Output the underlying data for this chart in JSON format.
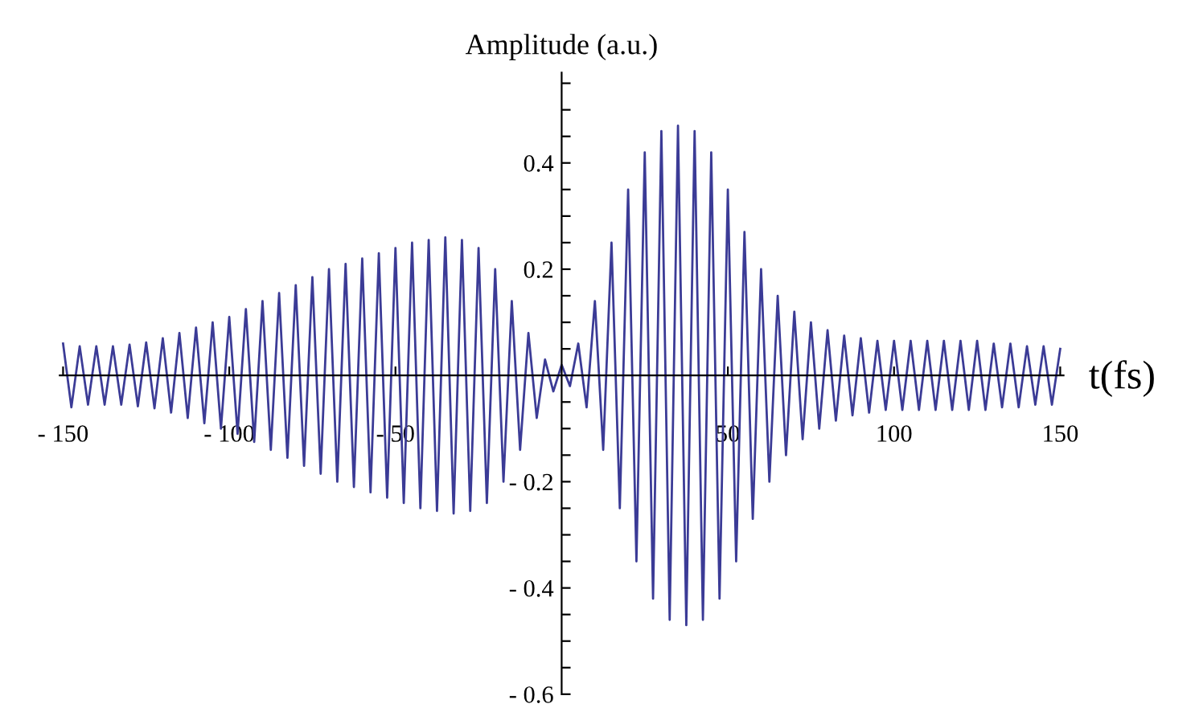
{
  "chart_data": {
    "type": "line",
    "xlabel": "t(fs)",
    "ylabel": "Amplitude (a.u.)",
    "x": [
      -150,
      -147.5,
      -145,
      -142.5,
      -140,
      -137.5,
      -135,
      -132.5,
      -130,
      -127.5,
      -125,
      -122.5,
      -120,
      -117.5,
      -115,
      -112.5,
      -110,
      -107.5,
      -105,
      -102.5,
      -100,
      -97.5,
      -95,
      -92.5,
      -90,
      -87.5,
      -85,
      -82.5,
      -80,
      -77.5,
      -75,
      -72.5,
      -70,
      -67.5,
      -65,
      -62.5,
      -60,
      -57.5,
      -55,
      -52.5,
      -50,
      -47.5,
      -45,
      -42.5,
      -40,
      -37.5,
      -35,
      -32.5,
      -30,
      -27.5,
      -25,
      -22.5,
      -20,
      -17.5,
      -15,
      -12.5,
      -10,
      -7.5,
      -5,
      -2.5,
      0,
      2.5,
      5,
      7.5,
      10,
      12.5,
      15,
      17.5,
      20,
      22.5,
      25,
      27.5,
      30,
      32.5,
      35,
      37.5,
      40,
      42.5,
      45,
      47.5,
      50,
      52.5,
      55,
      57.5,
      60,
      62.5,
      65,
      67.5,
      70,
      72.5,
      75,
      77.5,
      80,
      82.5,
      85,
      87.5,
      90,
      92.5,
      95,
      97.5,
      100,
      102.5,
      105,
      107.5,
      110,
      112.5,
      115,
      117.5,
      120,
      122.5,
      125,
      127.5,
      130,
      132.5,
      135,
      137.5,
      140,
      142.5,
      145,
      147.5,
      150
    ],
    "series": [
      {
        "color": "#3b3b96",
        "values": [
          0.06,
          -0.06,
          0.055,
          -0.055,
          0.055,
          -0.055,
          0.055,
          -0.055,
          0.058,
          -0.058,
          0.062,
          -0.062,
          0.07,
          -0.07,
          0.08,
          -0.08,
          0.09,
          -0.09,
          0.1,
          -0.1,
          0.11,
          -0.11,
          0.125,
          -0.125,
          0.14,
          -0.14,
          0.155,
          -0.155,
          0.17,
          -0.17,
          0.185,
          -0.185,
          0.2,
          -0.2,
          0.21,
          -0.21,
          0.22,
          -0.22,
          0.23,
          -0.23,
          0.24,
          -0.24,
          0.25,
          -0.25,
          0.255,
          -0.255,
          0.26,
          -0.26,
          0.255,
          -0.255,
          0.24,
          -0.24,
          0.2,
          -0.2,
          0.14,
          -0.14,
          0.08,
          -0.08,
          0.03,
          -0.03,
          0.02,
          -0.02,
          0.06,
          -0.06,
          0.14,
          -0.14,
          0.25,
          -0.25,
          0.35,
          -0.35,
          0.42,
          -0.42,
          0.46,
          -0.46,
          0.47,
          -0.47,
          0.46,
          -0.46,
          0.42,
          -0.42,
          0.35,
          -0.35,
          0.27,
          -0.27,
          0.2,
          -0.2,
          0.15,
          -0.15,
          0.12,
          -0.12,
          0.1,
          -0.1,
          0.085,
          -0.085,
          0.075,
          -0.075,
          0.07,
          -0.07,
          0.065,
          -0.065,
          0.065,
          -0.065,
          0.065,
          -0.065,
          0.065,
          -0.065,
          0.065,
          -0.065,
          0.065,
          -0.065,
          0.065,
          -0.065,
          0.06,
          -0.06,
          0.06,
          -0.06,
          0.055,
          -0.055,
          0.055,
          -0.055,
          0.05
        ]
      }
    ],
    "xlim": [
      -151,
      151
    ],
    "ylim": [
      -0.6,
      0.57
    ],
    "xticks": [
      {
        "value": -150,
        "label": "- 150"
      },
      {
        "value": -100,
        "label": "- 100"
      },
      {
        "value": -50,
        "label": "- 50"
      },
      50,
      100,
      150
    ],
    "yticks": [
      {
        "value": -0.6,
        "label": "- 0.6"
      },
      {
        "value": -0.55,
        "label": null
      },
      {
        "value": -0.5,
        "label": null
      },
      {
        "value": -0.45,
        "label": null
      },
      {
        "value": -0.4,
        "label": "- 0.4"
      },
      {
        "value": -0.35,
        "label": null
      },
      {
        "value": -0.3,
        "label": null
      },
      {
        "value": -0.25,
        "label": null
      },
      {
        "value": -0.2,
        "label": "- 0.2"
      },
      {
        "value": -0.15,
        "label": null
      },
      {
        "value": -0.1,
        "label": null
      },
      {
        "value": -0.05,
        "label": null
      },
      {
        "value": 0.05,
        "label": null
      },
      {
        "value": 0.1,
        "label": null
      },
      {
        "value": 0.15,
        "label": null
      },
      0.2,
      {
        "value": 0.25,
        "label": null
      },
      {
        "value": 0.3,
        "label": null
      },
      {
        "value": 0.35,
        "label": null
      },
      0.4,
      {
        "value": 0.45,
        "label": null
      },
      {
        "value": 0.5,
        "label": null
      },
      {
        "value": 0.55,
        "label": null
      }
    ],
    "grid": false
  }
}
